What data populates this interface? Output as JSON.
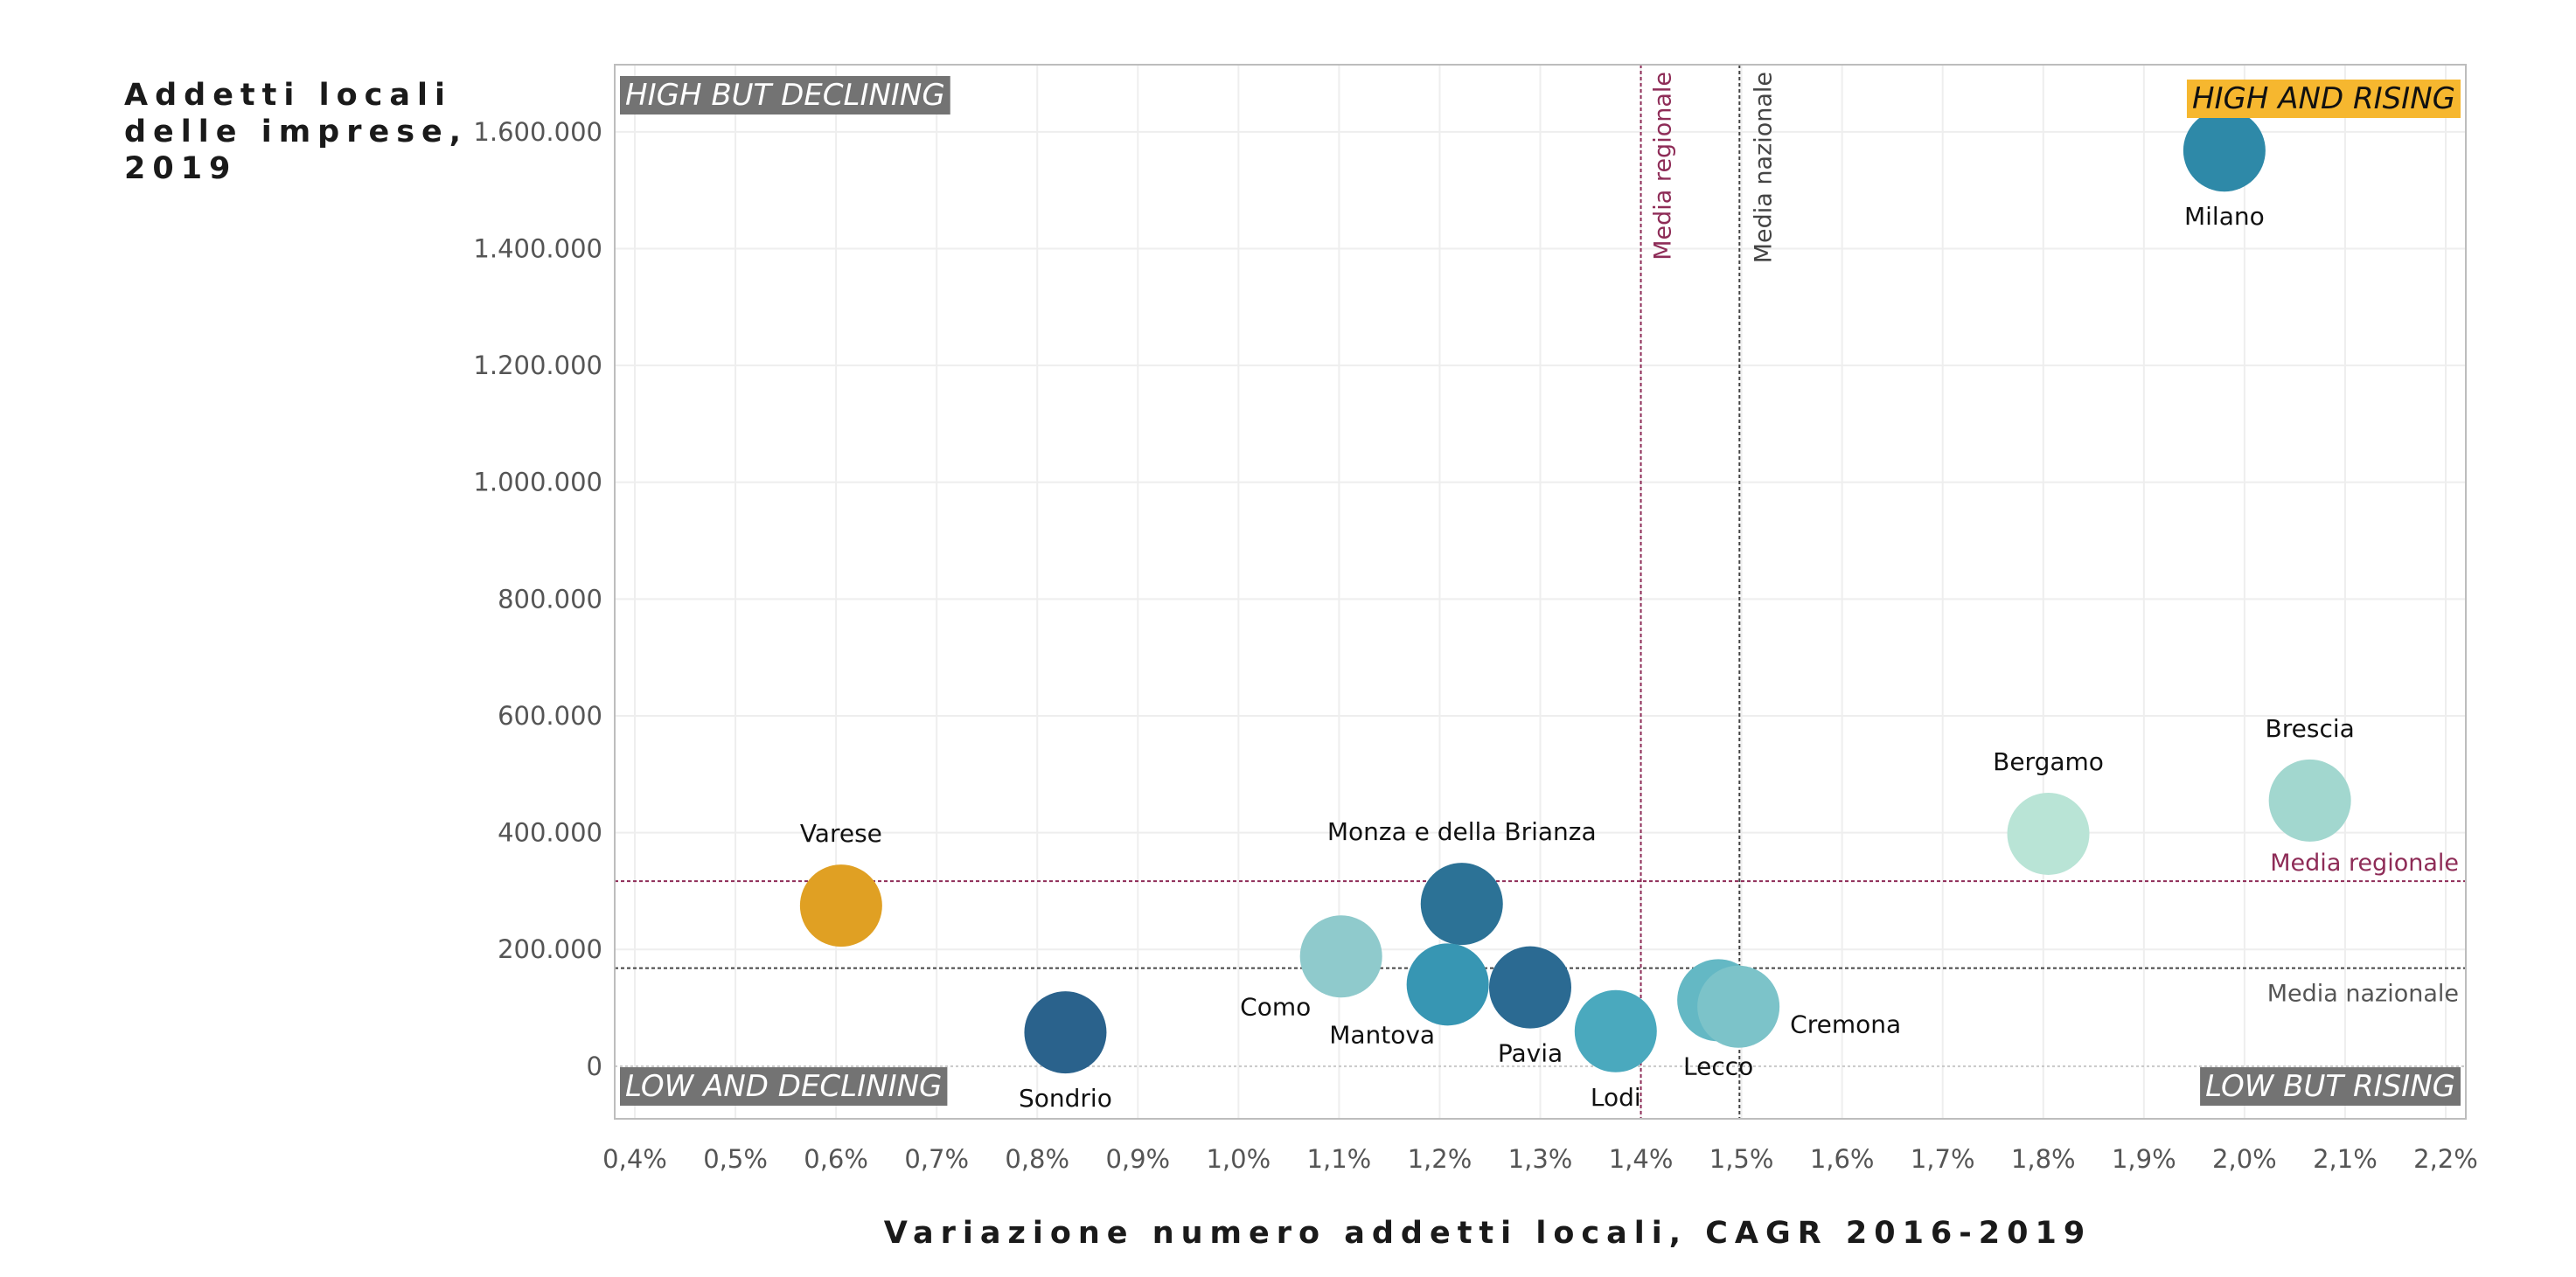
{
  "chart_data": {
    "type": "scatter",
    "title": "",
    "ylabel_lines": [
      "Addetti locali",
      "delle imprese,",
      "2019"
    ],
    "xlabel": "Variazione numero addetti locali, CAGR 2016-2019",
    "xlim": [
      0.38,
      2.22
    ],
    "ylim": [
      -90000,
      1715000
    ],
    "x_ticks": [
      {
        "value": 0.4,
        "label": "0,4%"
      },
      {
        "value": 0.5,
        "label": "0,5%"
      },
      {
        "value": 0.6,
        "label": "0,6%"
      },
      {
        "value": 0.7,
        "label": "0,7%"
      },
      {
        "value": 0.8,
        "label": "0,8%"
      },
      {
        "value": 0.9,
        "label": "0,9%"
      },
      {
        "value": 1.0,
        "label": "1,0%"
      },
      {
        "value": 1.1,
        "label": "1,1%"
      },
      {
        "value": 1.2,
        "label": "1,2%"
      },
      {
        "value": 1.3,
        "label": "1,3%"
      },
      {
        "value": 1.4,
        "label": "1,4%"
      },
      {
        "value": 1.5,
        "label": "1,5%"
      },
      {
        "value": 1.6,
        "label": "1,6%"
      },
      {
        "value": 1.7,
        "label": "1,7%"
      },
      {
        "value": 1.8,
        "label": "1,8%"
      },
      {
        "value": 1.9,
        "label": "1,9%"
      },
      {
        "value": 2.0,
        "label": "2,0%"
      },
      {
        "value": 2.1,
        "label": "2,1%"
      },
      {
        "value": 2.2,
        "label": "2,2%"
      }
    ],
    "y_ticks": [
      {
        "value": 0,
        "label": "0"
      },
      {
        "value": 200000,
        "label": "200.000"
      },
      {
        "value": 400000,
        "label": "400.000"
      },
      {
        "value": 600000,
        "label": "600.000"
      },
      {
        "value": 800000,
        "label": "800.000"
      },
      {
        "value": 1000000,
        "label": "1.000.000"
      },
      {
        "value": 1200000,
        "label": "1.200.000"
      },
      {
        "value": 1400000,
        "label": "1.400.000"
      },
      {
        "value": 1600000,
        "label": "1.600.000"
      }
    ],
    "points": [
      {
        "name": "Milano",
        "x": 1.98,
        "y": 1568000,
        "color": "#2e89a8",
        "label_pos": "below"
      },
      {
        "name": "Brescia",
        "x": 2.065,
        "y": 455000,
        "color": "#a2d7cf",
        "label_pos": "above"
      },
      {
        "name": "Bergamo",
        "x": 1.805,
        "y": 398000,
        "color": "#b9e4d6",
        "label_pos": "above"
      },
      {
        "name": "Varese",
        "x": 0.605,
        "y": 275000,
        "color": "#e0a023",
        "label_pos": "above"
      },
      {
        "name": "Monza e della Brianza",
        "x": 1.222,
        "y": 278000,
        "color": "#2c7296",
        "label_pos": "above"
      },
      {
        "name": "Como",
        "x": 1.102,
        "y": 188000,
        "color": "#8fcacc",
        "label_pos": "below-left"
      },
      {
        "name": "Mantova",
        "x": 1.208,
        "y": 140000,
        "color": "#3796b3",
        "label_pos": "below-left"
      },
      {
        "name": "Pavia",
        "x": 1.29,
        "y": 135000,
        "color": "#2b6a92",
        "label_pos": "below"
      },
      {
        "name": "Lodi",
        "x": 1.375,
        "y": 60000,
        "color": "#4aa9be",
        "label_pos": "below"
      },
      {
        "name": "Lecco",
        "x": 1.477,
        "y": 113000,
        "color": "#64b8c4",
        "label_pos": "below"
      },
      {
        "name": "Cremona",
        "x": 1.497,
        "y": 102000,
        "color": "#7cc3c9",
        "label_pos": "right"
      },
      {
        "name": "Sondrio",
        "x": 0.828,
        "y": 58000,
        "color": "#2a628c",
        "label_pos": "below"
      }
    ],
    "reference_lines": {
      "regional_x": 1.4,
      "national_x": 1.498,
      "regional_y": 317000,
      "national_y": 168000,
      "regional_label": "Media regionale",
      "national_label": "Media nazionale",
      "regional_color": "#8e2c57",
      "national_color": "#444444"
    },
    "quadrants": {
      "top_left": "HIGH BUT DECLINING",
      "top_right": "HIGH AND RISING",
      "bottom_left": "LOW AND DECLINING",
      "bottom_right": "LOW BUT RISING"
    },
    "colors": {
      "quadrant_box": "#737373",
      "highlight_box": "#f6b72f",
      "grid": "#eeeeee",
      "frame": "#bdbdbd",
      "zero_line": "#c8c8c8"
    }
  }
}
